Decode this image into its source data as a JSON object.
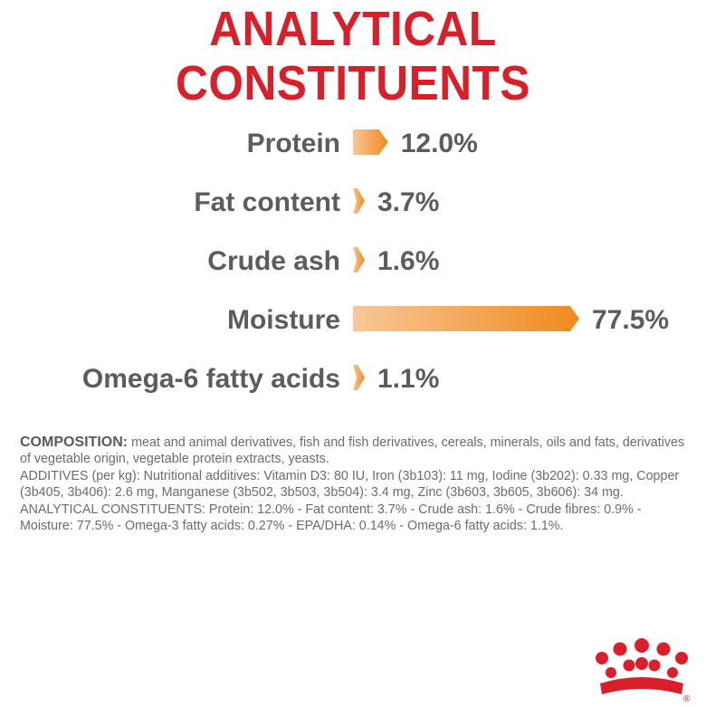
{
  "title": "ANALYTICAL CONSTITUENTS",
  "colors": {
    "title": "#d9202a",
    "bar_light": "#f8c79a",
    "bar_dark": "#f08a1c",
    "text": "#5c5c5c",
    "logo": "#d9202a"
  },
  "chart_data": {
    "type": "bar",
    "orientation": "horizontal",
    "categories": [
      "Protein",
      "Fat content",
      "Crude ash",
      "Moisture",
      "Omega-6 fatty acids"
    ],
    "values": [
      12.0,
      3.7,
      1.6,
      77.5,
      1.1
    ],
    "value_labels": [
      "12.0%",
      "3.7%",
      "1.6%",
      "77.5%",
      "1.1%"
    ],
    "unit": "%",
    "grid": false,
    "legend": "none"
  },
  "composition": {
    "heading": "COMPOSITION:",
    "text": " meat and animal derivatives, fish and fish derivatives, cereals, minerals, oils and fats, derivatives of vegetable origin, vegetable protein extracts, yeasts.",
    "additives": "ADDITIVES (per kg): Nutritional additives: Vitamin D3: 80 IU, Iron (3b103): 11 mg, Iodine (3b202): 0.33 mg, Copper (3b405, 3b406): 2.6 mg, Manganese (3b502, 3b503, 3b504): 3.4 mg, Zinc (3b603, 3b605, 3b606): 34 mg.",
    "analytical": "ANALYTICAL CONSTITUENTS: Protein: 12.0% - Fat content: 3.7% - Crude ash: 1.6% - Crude fibres: 0.9% - Moisture: 77.5% - Omega-3 fatty acids: 0.27% - EPA/DHA: 0.14% - Omega-6 fatty acids: 1.1%."
  },
  "logo": {
    "icon": "crown-icon",
    "registered_mark": "®"
  }
}
